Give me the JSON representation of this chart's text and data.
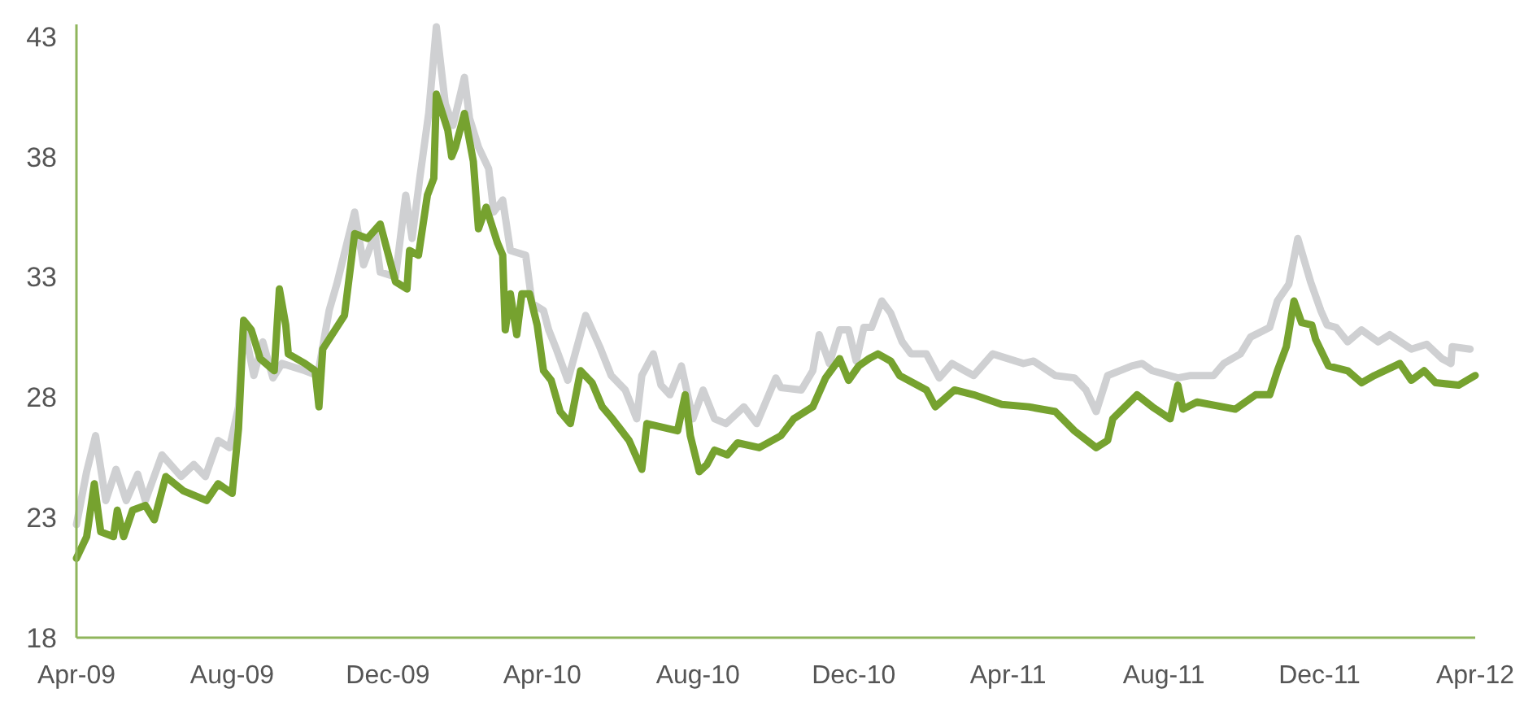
{
  "chart_data": {
    "type": "line",
    "xlim": [
      "2009-04-01",
      "2012-04-01"
    ],
    "ylim": [
      18,
      43.5
    ],
    "yticks": [
      18,
      23,
      28,
      33,
      38,
      43
    ],
    "xticks": [
      {
        "value": "2009-04-01",
        "label": "Apr-09"
      },
      {
        "value": "2009-08-01",
        "label": "Aug-09"
      },
      {
        "value": "2009-12-01",
        "label": "Dec-09"
      },
      {
        "value": "2010-04-01",
        "label": "Apr-10"
      },
      {
        "value": "2010-08-01",
        "label": "Aug-10"
      },
      {
        "value": "2010-12-01",
        "label": "Dec-10"
      },
      {
        "value": "2011-04-01",
        "label": "Apr-11"
      },
      {
        "value": "2011-08-01",
        "label": "Aug-11"
      },
      {
        "value": "2011-12-01",
        "label": "Dec-11"
      },
      {
        "value": "2012-04-01",
        "label": "Apr-12"
      }
    ],
    "grid": false,
    "marker": "none",
    "line_style": "solid",
    "series": [
      {
        "color": "#cfd0d2",
        "x": [
          "2009-04-01",
          "2009-04-09",
          "2009-04-16",
          "2009-04-24",
          "2009-05-02",
          "2009-05-10",
          "2009-05-19",
          "2009-05-25",
          "2009-06-07",
          "2009-06-22",
          "2009-07-02",
          "2009-07-11",
          "2009-07-21",
          "2009-07-30",
          "2009-08-06",
          "2009-08-10",
          "2009-08-18",
          "2009-08-25",
          "2009-09-02",
          "2009-09-09",
          "2009-09-27",
          "2009-10-07",
          "2009-10-16",
          "2009-10-22",
          "2009-11-05",
          "2009-11-12",
          "2009-11-21",
          "2009-11-25",
          "2009-12-07",
          "2009-12-15",
          "2009-12-20",
          "2009-12-26",
          "2010-01-02",
          "2010-01-08",
          "2010-01-15",
          "2010-01-21",
          "2010-01-30",
          "2010-02-03",
          "2010-02-10",
          "2010-02-18",
          "2010-02-22",
          "2010-03-01",
          "2010-03-07",
          "2010-03-19",
          "2010-03-24",
          "2010-04-02",
          "2010-04-06",
          "2010-04-12",
          "2010-04-21",
          "2010-05-05",
          "2010-05-16",
          "2010-05-25",
          "2010-06-05",
          "2010-06-14",
          "2010-06-18",
          "2010-06-27",
          "2010-07-03",
          "2010-07-10",
          "2010-07-19",
          "2010-07-28",
          "2010-08-05",
          "2010-08-14",
          "2010-08-23",
          "2010-09-06",
          "2010-09-16",
          "2010-10-01",
          "2010-10-05",
          "2010-10-21",
          "2010-10-30",
          "2010-11-04",
          "2010-11-12",
          "2010-11-20",
          "2010-11-27",
          "2010-12-03",
          "2010-12-09",
          "2010-12-15",
          "2010-12-23",
          "2010-12-30",
          "2011-01-08",
          "2011-01-15",
          "2011-01-27",
          "2011-02-06",
          "2011-02-16",
          "2011-02-26",
          "2011-03-05",
          "2011-03-20",
          "2011-04-13",
          "2011-04-21",
          "2011-05-08",
          "2011-05-23",
          "2011-06-01",
          "2011-06-09",
          "2011-06-18",
          "2011-07-07",
          "2011-07-15",
          "2011-07-23",
          "2011-08-12",
          "2011-08-22",
          "2011-09-09",
          "2011-09-17",
          "2011-09-30",
          "2011-10-08",
          "2011-10-23",
          "2011-10-29",
          "2011-11-07",
          "2011-11-14",
          "2011-11-24",
          "2011-12-02",
          "2011-12-07",
          "2011-12-14",
          "2011-12-23",
          "2012-01-03",
          "2012-01-16",
          "2012-01-25",
          "2012-02-11",
          "2012-02-23",
          "2012-03-06",
          "2012-03-13",
          "2012-03-14",
          "2012-03-28"
        ],
        "values": [
          22.7,
          24.9,
          26.4,
          23.7,
          25.0,
          23.7,
          24.8,
          23.7,
          25.6,
          24.7,
          25.2,
          24.7,
          26.2,
          25.9,
          27.6,
          31.0,
          28.9,
          30.3,
          28.8,
          29.4,
          29.1,
          28.9,
          31.6,
          32.7,
          35.7,
          33.5,
          34.8,
          33.2,
          33.0,
          36.4,
          34.6,
          37.1,
          39.8,
          43.4,
          40.2,
          39.3,
          41.3,
          39.6,
          38.4,
          37.5,
          35.7,
          36.2,
          34.1,
          33.9,
          31.9,
          31.6,
          30.8,
          30.0,
          28.7,
          31.4,
          30.1,
          28.9,
          28.3,
          27.1,
          28.9,
          29.8,
          28.5,
          28.1,
          29.3,
          27.1,
          28.3,
          27.1,
          26.9,
          27.6,
          26.9,
          28.8,
          28.4,
          28.3,
          29.1,
          30.6,
          29.4,
          30.8,
          30.8,
          29.5,
          30.9,
          30.9,
          32.0,
          31.5,
          30.3,
          29.8,
          29.8,
          28.8,
          29.4,
          29.1,
          28.9,
          29.8,
          29.4,
          29.5,
          28.9,
          28.8,
          28.3,
          27.4,
          28.9,
          29.3,
          29.4,
          29.1,
          28.8,
          28.9,
          28.9,
          29.4,
          29.8,
          30.5,
          30.9,
          32.0,
          32.7,
          34.6,
          32.8,
          31.6,
          31.0,
          30.9,
          30.3,
          30.8,
          30.3,
          30.6,
          30.0,
          30.2,
          29.6,
          29.4,
          30.1,
          30.0
        ]
      },
      {
        "color": "#76a22f",
        "x": [
          "2009-04-01",
          "2009-04-09",
          "2009-04-15",
          "2009-04-20",
          "2009-04-30",
          "2009-05-03",
          "2009-05-08",
          "2009-05-15",
          "2009-05-25",
          "2009-06-01",
          "2009-06-10",
          "2009-06-24",
          "2009-07-12",
          "2009-07-21",
          "2009-08-01",
          "2009-08-06",
          "2009-08-10",
          "2009-08-16",
          "2009-08-23",
          "2009-09-03",
          "2009-09-07",
          "2009-09-12",
          "2009-09-14",
          "2009-09-27",
          "2009-10-05",
          "2009-10-08",
          "2009-10-11",
          "2009-10-28",
          "2009-11-05",
          "2009-11-15",
          "2009-11-25",
          "2009-12-07",
          "2009-12-16",
          "2009-12-18",
          "2009-12-25",
          "2010-01-01",
          "2010-01-06",
          "2010-01-08",
          "2010-01-17",
          "2010-01-20",
          "2010-01-23",
          "2010-01-30",
          "2010-02-06",
          "2010-02-10",
          "2010-02-16",
          "2010-02-25",
          "2010-03-01",
          "2010-03-03",
          "2010-03-07",
          "2010-03-12",
          "2010-03-16",
          "2010-03-22",
          "2010-03-28",
          "2010-04-02",
          "2010-04-08",
          "2010-04-15",
          "2010-04-23",
          "2010-05-01",
          "2010-05-10",
          "2010-05-18",
          "2010-05-26",
          "2010-06-08",
          "2010-06-18",
          "2010-06-22",
          "2010-07-16",
          "2010-07-22",
          "2010-07-26",
          "2010-08-02",
          "2010-08-08",
          "2010-08-14",
          "2010-08-24",
          "2010-09-01",
          "2010-09-18",
          "2010-10-05",
          "2010-10-15",
          "2010-10-30",
          "2010-11-09",
          "2010-11-20",
          "2010-11-27",
          "2010-12-05",
          "2010-12-13",
          "2010-12-20",
          "2010-12-30",
          "2011-01-06",
          "2011-01-27",
          "2011-02-03",
          "2011-02-18",
          "2011-03-05",
          "2011-03-27",
          "2011-04-17",
          "2011-05-08",
          "2011-05-23",
          "2011-06-09",
          "2011-06-18",
          "2011-06-22",
          "2011-07-11",
          "2011-07-23",
          "2011-08-06",
          "2011-08-12",
          "2011-08-16",
          "2011-08-27",
          "2011-09-26",
          "2011-10-12",
          "2011-10-23",
          "2011-10-29",
          "2011-11-05",
          "2011-11-11",
          "2011-11-17",
          "2011-11-25",
          "2011-11-28",
          "2011-12-08",
          "2011-12-23",
          "2012-01-03",
          "2012-01-13",
          "2012-02-02",
          "2012-02-11",
          "2012-02-21",
          "2012-03-01",
          "2012-03-19",
          "2012-04-01"
        ],
        "values": [
          21.3,
          22.2,
          24.4,
          22.4,
          22.2,
          23.3,
          22.2,
          23.3,
          23.5,
          22.9,
          24.7,
          24.1,
          23.7,
          24.4,
          24.0,
          26.7,
          31.2,
          30.8,
          29.6,
          29.1,
          32.5,
          31.0,
          29.8,
          29.4,
          29.1,
          27.6,
          30.0,
          31.4,
          34.8,
          34.6,
          35.2,
          32.8,
          32.5,
          34.1,
          33.9,
          36.4,
          37.1,
          40.6,
          39.1,
          38.0,
          38.4,
          39.8,
          37.8,
          35.0,
          35.9,
          34.4,
          33.9,
          30.8,
          32.3,
          30.6,
          32.3,
          32.3,
          31.0,
          29.1,
          28.7,
          27.4,
          26.9,
          29.1,
          28.6,
          27.6,
          27.1,
          26.2,
          25.0,
          26.9,
          26.6,
          28.1,
          26.4,
          24.9,
          25.2,
          25.8,
          25.6,
          26.1,
          25.9,
          26.4,
          27.1,
          27.6,
          28.8,
          29.6,
          28.7,
          29.3,
          29.6,
          29.8,
          29.5,
          28.9,
          28.3,
          27.6,
          28.3,
          28.1,
          27.7,
          27.6,
          27.4,
          26.6,
          25.9,
          26.2,
          27.1,
          28.1,
          27.6,
          27.1,
          28.5,
          27.5,
          27.8,
          27.5,
          28.1,
          28.1,
          29.1,
          30.1,
          32.0,
          31.1,
          31.0,
          30.4,
          29.3,
          29.1,
          28.6,
          28.9,
          29.4,
          28.7,
          29.1,
          28.6,
          28.5,
          28.9
        ]
      }
    ]
  }
}
